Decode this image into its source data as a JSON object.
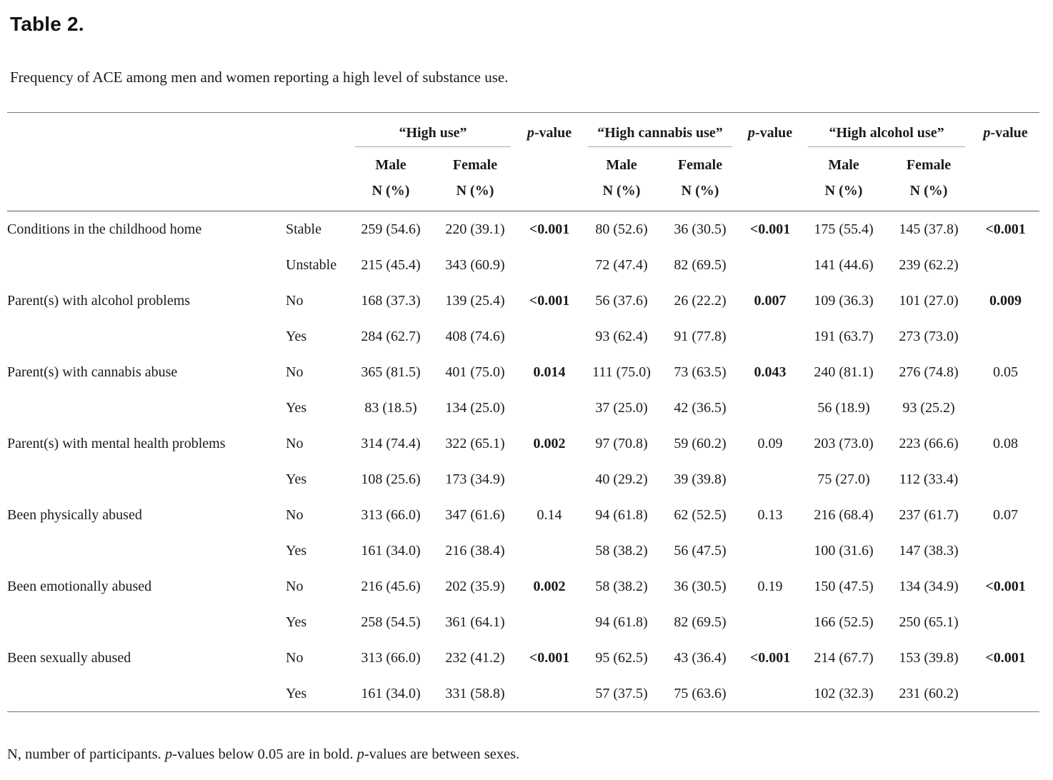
{
  "page": {
    "title": "Table 2.",
    "caption": "Frequency of ACE among men and women reporting a high level of substance use.",
    "footnote_parts": [
      {
        "text": "N, number of participants. ",
        "italic": false
      },
      {
        "text": "p",
        "italic": true
      },
      {
        "text": "-values below 0.05 are in bold. ",
        "italic": false
      },
      {
        "text": "p",
        "italic": true
      },
      {
        "text": "-values are between sexes.",
        "italic": false
      }
    ]
  },
  "table": {
    "group_labels": [
      "“High use”",
      "“High cannabis use”",
      "“High alcohol use”"
    ],
    "p_label": {
      "italic": "p",
      "rest": "-value"
    },
    "sex_labels": [
      "Male",
      "Female"
    ],
    "n_label": "N (%)",
    "rows": [
      {
        "label": "Conditions in the childhood home",
        "levels": [
          {
            "name": "Stable",
            "cells": [
              "259 (54.6)",
              "220 (39.1)",
              "80 (52.6)",
              "36 (30.5)",
              "175 (55.4)",
              "145 (37.8)"
            ]
          },
          {
            "name": "Unstable",
            "cells": [
              "215 (45.4)",
              "343 (60.9)",
              "72 (47.4)",
              "82 (69.5)",
              "141 (44.6)",
              "239 (62.2)"
            ]
          }
        ],
        "p_values": [
          {
            "text": "<0.001",
            "bold": true
          },
          {
            "text": "<0.001",
            "bold": true
          },
          {
            "text": "<0.001",
            "bold": true
          }
        ]
      },
      {
        "label": "Parent(s) with alcohol problems",
        "levels": [
          {
            "name": "No",
            "cells": [
              "168 (37.3)",
              "139 (25.4)",
              "56 (37.6)",
              "26 (22.2)",
              "109 (36.3)",
              "101 (27.0)"
            ]
          },
          {
            "name": "Yes",
            "cells": [
              "284 (62.7)",
              "408 (74.6)",
              "93 (62.4)",
              "91 (77.8)",
              "191 (63.7)",
              "273 (73.0)"
            ]
          }
        ],
        "p_values": [
          {
            "text": "<0.001",
            "bold": true
          },
          {
            "text": "0.007",
            "bold": true
          },
          {
            "text": "0.009",
            "bold": true
          }
        ]
      },
      {
        "label": "Parent(s) with cannabis abuse",
        "levels": [
          {
            "name": "No",
            "cells": [
              "365 (81.5)",
              "401 (75.0)",
              "111 (75.0)",
              "73 (63.5)",
              "240 (81.1)",
              "276 (74.8)"
            ]
          },
          {
            "name": "Yes",
            "cells": [
              "83 (18.5)",
              "134 (25.0)",
              "37 (25.0)",
              "42 (36.5)",
              "56 (18.9)",
              "93 (25.2)"
            ]
          }
        ],
        "p_values": [
          {
            "text": "0.014",
            "bold": true
          },
          {
            "text": "0.043",
            "bold": true
          },
          {
            "text": "0.05",
            "bold": false
          }
        ]
      },
      {
        "label": "Parent(s) with mental health problems",
        "levels": [
          {
            "name": "No",
            "cells": [
              "314 (74.4)",
              "322 (65.1)",
              "97 (70.8)",
              "59 (60.2)",
              "203 (73.0)",
              "223 (66.6)"
            ]
          },
          {
            "name": "Yes",
            "cells": [
              "108 (25.6)",
              "173 (34.9)",
              "40 (29.2)",
              "39 (39.8)",
              "75 (27.0)",
              "112 (33.4)"
            ]
          }
        ],
        "p_values": [
          {
            "text": "0.002",
            "bold": true
          },
          {
            "text": "0.09",
            "bold": false
          },
          {
            "text": "0.08",
            "bold": false
          }
        ]
      },
      {
        "label": "Been physically abused",
        "levels": [
          {
            "name": "No",
            "cells": [
              "313 (66.0)",
              "347 (61.6)",
              "94 (61.8)",
              "62 (52.5)",
              "216 (68.4)",
              "237 (61.7)"
            ]
          },
          {
            "name": "Yes",
            "cells": [
              "161 (34.0)",
              "216 (38.4)",
              "58 (38.2)",
              "56 (47.5)",
              "100 (31.6)",
              "147 (38.3)"
            ]
          }
        ],
        "p_values": [
          {
            "text": "0.14",
            "bold": false
          },
          {
            "text": "0.13",
            "bold": false
          },
          {
            "text": "0.07",
            "bold": false
          }
        ]
      },
      {
        "label": "Been emotionally abused",
        "levels": [
          {
            "name": "No",
            "cells": [
              "216 (45.6)",
              "202 (35.9)",
              "58 (38.2)",
              "36 (30.5)",
              "150 (47.5)",
              "134 (34.9)"
            ]
          },
          {
            "name": "Yes",
            "cells": [
              "258 (54.5)",
              "361 (64.1)",
              "94 (61.8)",
              "82 (69.5)",
              "166 (52.5)",
              "250 (65.1)"
            ]
          }
        ],
        "p_values": [
          {
            "text": "0.002",
            "bold": true
          },
          {
            "text": "0.19",
            "bold": false
          },
          {
            "text": "<0.001",
            "bold": true
          }
        ]
      },
      {
        "label": "Been sexually abused",
        "levels": [
          {
            "name": "No",
            "cells": [
              "313 (66.0)",
              "232 (41.2)",
              "95 (62.5)",
              "43 (36.4)",
              "214 (67.7)",
              "153 (39.8)"
            ]
          },
          {
            "name": "Yes",
            "cells": [
              "161 (34.0)",
              "331 (58.8)",
              "57 (37.5)",
              "75 (63.6)",
              "102 (32.3)",
              "231 (60.2)"
            ]
          }
        ],
        "p_values": [
          {
            "text": "<0.001",
            "bold": true
          },
          {
            "text": "<0.001",
            "bold": true
          },
          {
            "text": "<0.001",
            "bold": true
          }
        ]
      }
    ]
  }
}
